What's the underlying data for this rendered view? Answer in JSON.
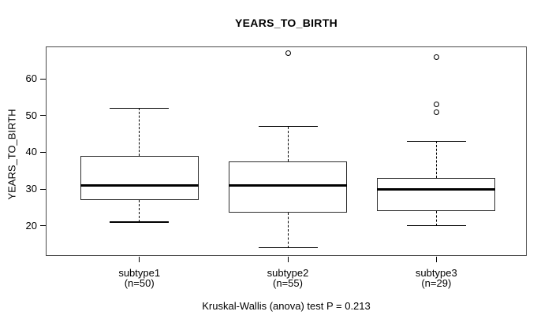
{
  "chart_data": {
    "type": "boxplot",
    "title": "YEARS_TO_BIRTH",
    "ylabel": "YEARS_TO_BIRTH",
    "xlabel": "",
    "caption": "Kruskal-Wallis (anova) test P = 0.213",
    "yticks": [
      20,
      30,
      40,
      50,
      60
    ],
    "ylim": [
      11.8,
      68.8
    ],
    "grid": false,
    "legend": "none",
    "groups": [
      {
        "label": "subtype1",
        "n_label": "(n=50)",
        "lower_whisker": 21,
        "q1": 27,
        "median": 31,
        "q3": 39,
        "upper_whisker": 52,
        "outliers": []
      },
      {
        "label": "subtype2",
        "n_label": "(n=55)",
        "lower_whisker": 14,
        "q1": 23.5,
        "median": 31,
        "q3": 37.5,
        "upper_whisker": 47,
        "outliers": [
          67
        ]
      },
      {
        "label": "subtype3",
        "n_label": "(n=29)",
        "lower_whisker": 20,
        "q1": 24,
        "median": 30,
        "q3": 33,
        "upper_whisker": 43,
        "outliers": [
          51,
          53,
          66
        ]
      }
    ],
    "colors": {
      "background": "#ffffff",
      "text": "#000000",
      "plot_border": "#4a4a4a",
      "box_border": "#2e2e2e",
      "median": "#000000",
      "whisker": "#000000",
      "outlier": "#000000"
    }
  }
}
